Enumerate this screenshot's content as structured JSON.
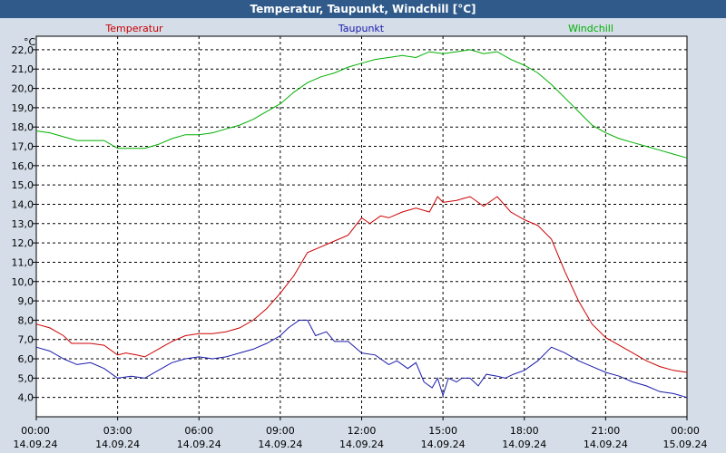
{
  "chart_data": {
    "type": "line",
    "title": "Temperatur, Taupunkt, Windchill [°C]",
    "ylabel": "°C",
    "ylim": [
      3.0,
      22.7
    ],
    "yticks": [
      4.0,
      5.0,
      6.0,
      7.0,
      8.0,
      9.0,
      10.0,
      11.0,
      12.0,
      13.0,
      14.0,
      15.0,
      16.0,
      17.0,
      18.0,
      19.0,
      20.0,
      21.0,
      22.0
    ],
    "ytick_labels": [
      "4,0",
      "5,0",
      "6,0",
      "7,0",
      "8,0",
      "9,0",
      "10,0",
      "11,0",
      "12,0",
      "13,0",
      "14,0",
      "15,0",
      "16,0",
      "17,0",
      "18,0",
      "19,0",
      "20,0",
      "21,0",
      "22,0"
    ],
    "xlim": [
      0,
      24
    ],
    "xticks": [
      {
        "x": 0,
        "time": "00:00",
        "date": "14.09.24"
      },
      {
        "x": 3,
        "time": "03:00",
        "date": "14.09.24"
      },
      {
        "x": 6,
        "time": "06:00",
        "date": "14.09.24"
      },
      {
        "x": 9,
        "time": "09:00",
        "date": "14.09.24"
      },
      {
        "x": 12,
        "time": "12:00",
        "date": "14.09.24"
      },
      {
        "x": 15,
        "time": "15:00",
        "date": "14.09.24"
      },
      {
        "x": 18,
        "time": "18:00",
        "date": "14.09.24"
      },
      {
        "x": 21,
        "time": "21:00",
        "date": "14.09.24"
      },
      {
        "x": 24,
        "time": "00:00",
        "date": "15.09.24"
      }
    ],
    "grid": true,
    "series": [
      {
        "name": "Temperatur",
        "color": "#cc0000",
        "x": [
          0,
          0.5,
          1,
          1.3,
          1.7,
          2,
          2.5,
          3,
          3.3,
          3.7,
          4,
          4.5,
          5,
          5.5,
          6,
          6.5,
          7,
          7.5,
          8,
          8.5,
          9,
          9.5,
          10,
          10.5,
          11,
          11.5,
          12,
          12.3,
          12.7,
          13,
          13.5,
          14,
          14.5,
          14.8,
          15,
          15.5,
          16,
          16.5,
          17,
          17.5,
          18,
          18.5,
          19,
          19.5,
          20,
          20.5,
          21,
          21.5,
          22,
          22.5,
          23,
          23.5,
          24
        ],
        "values": [
          7.8,
          7.6,
          7.2,
          6.8,
          6.8,
          6.8,
          6.7,
          6.2,
          6.3,
          6.2,
          6.1,
          6.5,
          6.9,
          7.2,
          7.3,
          7.3,
          7.4,
          7.6,
          8.0,
          8.6,
          9.4,
          10.3,
          11.5,
          11.8,
          12.1,
          12.4,
          13.3,
          13.0,
          13.4,
          13.3,
          13.6,
          13.8,
          13.6,
          14.4,
          14.1,
          14.2,
          14.4,
          13.9,
          14.4,
          13.6,
          13.2,
          12.9,
          12.2,
          10.5,
          9.0,
          7.8,
          7.1,
          6.7,
          6.3,
          5.9,
          5.6,
          5.4,
          5.3
        ]
      },
      {
        "name": "Taupunkt",
        "color": "#1a1aaa",
        "x": [
          0,
          0.5,
          1,
          1.5,
          2,
          2.5,
          3,
          3.5,
          4,
          4.5,
          5,
          5.5,
          6,
          6.5,
          7,
          7.5,
          8,
          8.5,
          9,
          9.3,
          9.7,
          10,
          10.3,
          10.7,
          11,
          11.5,
          12,
          12.5,
          13,
          13.3,
          13.7,
          14,
          14.3,
          14.6,
          14.8,
          15,
          15.2,
          15.5,
          15.7,
          16,
          16.3,
          16.6,
          17,
          17.3,
          17.6,
          18,
          18.5,
          19,
          19.5,
          20,
          20.5,
          21,
          21.5,
          22,
          22.5,
          23,
          23.5,
          24
        ],
        "values": [
          6.6,
          6.4,
          6.0,
          5.7,
          5.8,
          5.5,
          5.0,
          5.1,
          5.0,
          5.4,
          5.8,
          6.0,
          6.1,
          6.0,
          6.1,
          6.3,
          6.5,
          6.8,
          7.2,
          7.6,
          8.0,
          8.0,
          7.2,
          7.4,
          6.9,
          6.9,
          6.3,
          6.2,
          5.7,
          5.9,
          5.5,
          5.8,
          4.8,
          4.5,
          5.0,
          4.1,
          5.0,
          4.8,
          5.0,
          5.0,
          4.6,
          5.2,
          5.1,
          5.0,
          5.2,
          5.4,
          5.9,
          6.6,
          6.3,
          5.9,
          5.6,
          5.3,
          5.1,
          4.8,
          4.6,
          4.3,
          4.2,
          4.0
        ]
      },
      {
        "name": "Windchill",
        "color": "#00b000",
        "x": [
          0,
          0.5,
          1,
          1.5,
          2,
          2.5,
          3,
          3.5,
          4,
          4.5,
          5,
          5.5,
          6,
          6.5,
          7,
          7.5,
          8,
          8.5,
          9,
          9.5,
          10,
          10.5,
          11,
          11.5,
          12,
          12.5,
          13,
          13.5,
          14,
          14.5,
          15,
          15.5,
          16,
          16.5,
          17,
          17.5,
          18,
          18.5,
          19,
          19.5,
          20,
          20.5,
          21,
          21.5,
          22,
          22.5,
          23,
          23.5,
          24
        ],
        "values": [
          17.8,
          17.7,
          17.5,
          17.3,
          17.3,
          17.3,
          16.9,
          16.9,
          16.9,
          17.1,
          17.4,
          17.6,
          17.6,
          17.7,
          17.9,
          18.1,
          18.4,
          18.8,
          19.2,
          19.8,
          20.3,
          20.6,
          20.8,
          21.1,
          21.3,
          21.5,
          21.6,
          21.7,
          21.6,
          21.9,
          21.8,
          21.9,
          22.0,
          21.8,
          21.9,
          21.5,
          21.2,
          20.8,
          20.2,
          19.5,
          18.8,
          18.1,
          17.7,
          17.4,
          17.2,
          17.0,
          16.8,
          16.6,
          16.4
        ]
      }
    ]
  }
}
